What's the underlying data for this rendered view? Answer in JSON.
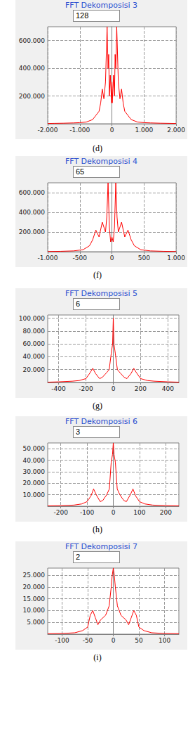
{
  "chart_data": [
    {
      "type": "line",
      "title": "FFT Dekomposisi 3",
      "subtitle": "128",
      "caption": "(d)",
      "color": "#ff0000",
      "grid": true,
      "x": [
        -2000,
        -1800,
        -1500,
        -1200,
        -1000,
        -800,
        -600,
        -500,
        -400,
        -350,
        -300,
        -250,
        -200,
        -150,
        -120,
        -100,
        -80,
        -50,
        -30,
        -10,
        0,
        10,
        30,
        50,
        80,
        100,
        120,
        150,
        200,
        250,
        300,
        350,
        400,
        500,
        600,
        800,
        1000,
        1200,
        1500,
        1800,
        2000
      ],
      "values": [
        2000,
        3000,
        4000,
        6000,
        8000,
        12000,
        30000,
        60000,
        90000,
        150000,
        250000,
        180000,
        300000,
        700000,
        400000,
        500000,
        200000,
        350000,
        250000,
        150000,
        300000,
        150000,
        250000,
        350000,
        200000,
        500000,
        400000,
        700000,
        300000,
        180000,
        250000,
        150000,
        90000,
        60000,
        30000,
        12000,
        8000,
        6000,
        4000,
        3000,
        2000
      ],
      "xlim": [
        -2000,
        2000
      ],
      "xticks": [
        {
          "value": -2000,
          "label": "-2.000"
        },
        {
          "value": -1000,
          "label": "-1.000"
        },
        0,
        {
          "value": 1000,
          "label": "1.000"
        },
        {
          "value": 2000,
          "label": "2.000"
        }
      ],
      "ylim": [
        0,
        700000
      ],
      "yticks": [
        {
          "value": 200000,
          "label": "200.000"
        },
        {
          "value": 400000,
          "label": "400.000"
        },
        {
          "value": 600000,
          "label": "600.000"
        }
      ]
    },
    {
      "type": "line",
      "title": "FFT Dekomposisi 4",
      "subtitle": "65",
      "caption": "(f)",
      "color": "#ff0000",
      "grid": true,
      "x": [
        -1000,
        -800,
        -600,
        -450,
        -350,
        -300,
        -250,
        -200,
        -150,
        -100,
        -80,
        -60,
        -40,
        -20,
        0,
        20,
        40,
        60,
        80,
        100,
        150,
        200,
        250,
        300,
        350,
        450,
        600,
        800,
        1000
      ],
      "values": [
        2000,
        4000,
        8000,
        20000,
        60000,
        120000,
        220000,
        150000,
        300000,
        200000,
        350000,
        700000,
        250000,
        100000,
        150000,
        100000,
        250000,
        700000,
        350000,
        200000,
        300000,
        150000,
        220000,
        120000,
        60000,
        20000,
        8000,
        4000,
        2000
      ],
      "xlim": [
        -1000,
        1000
      ],
      "xticks": [
        {
          "value": -1000,
          "label": "-1.000"
        },
        -500,
        0,
        500,
        {
          "value": 1000,
          "label": "1.000"
        }
      ],
      "ylim": [
        0,
        700000
      ],
      "yticks": [
        {
          "value": 200000,
          "label": "200.000"
        },
        {
          "value": 400000,
          "label": "400.000"
        },
        {
          "value": 600000,
          "label": "600.000"
        }
      ]
    },
    {
      "type": "line",
      "title": "FFT Dekomposisi 5",
      "subtitle": "6",
      "caption": "(g)",
      "color": "#ff0000",
      "grid": true,
      "x": [
        -480,
        -400,
        -300,
        -250,
        -200,
        -170,
        -150,
        -130,
        -100,
        -80,
        -50,
        -30,
        -15,
        -5,
        0,
        5,
        15,
        30,
        50,
        80,
        100,
        130,
        150,
        170,
        200,
        250,
        300,
        400,
        480
      ],
      "values": [
        500,
        1000,
        2000,
        3000,
        6000,
        15000,
        22000,
        14000,
        6000,
        8000,
        15000,
        20000,
        45000,
        60000,
        100000,
        60000,
        45000,
        20000,
        15000,
        8000,
        6000,
        14000,
        22000,
        15000,
        6000,
        3000,
        2000,
        1000,
        500
      ],
      "xlim": [
        -480,
        480
      ],
      "xticks": [
        -400,
        -200,
        0,
        200,
        400
      ],
      "ylim": [
        0,
        105000
      ],
      "yticks": [
        {
          "value": 20000,
          "label": "20.000"
        },
        {
          "value": 40000,
          "label": "40.000"
        },
        {
          "value": 60000,
          "label": "60.000"
        },
        {
          "value": 80000,
          "label": "80.000"
        },
        {
          "value": 100000,
          "label": "100.000"
        }
      ]
    },
    {
      "type": "line",
      "title": "FFT Dekomposisi 6",
      "subtitle": "3",
      "caption": "(h)",
      "color": "#ff0000",
      "grid": true,
      "x": [
        -250,
        -200,
        -150,
        -120,
        -100,
        -85,
        -75,
        -65,
        -50,
        -40,
        -25,
        -15,
        -8,
        -3,
        0,
        3,
        8,
        15,
        25,
        40,
        50,
        65,
        75,
        85,
        100,
        120,
        150,
        200,
        250
      ],
      "values": [
        300,
        500,
        1000,
        2000,
        4000,
        9000,
        15000,
        10000,
        4000,
        5000,
        10000,
        15000,
        38000,
        45000,
        55000,
        45000,
        38000,
        15000,
        10000,
        5000,
        4000,
        10000,
        15000,
        9000,
        4000,
        2000,
        1000,
        500,
        300
      ],
      "xlim": [
        -250,
        250
      ],
      "xticks": [
        -200,
        -100,
        0,
        100,
        200
      ],
      "ylim": [
        0,
        55000
      ],
      "yticks": [
        {
          "value": 10000,
          "label": "10.000"
        },
        {
          "value": 20000,
          "label": "20.000"
        },
        {
          "value": 30000,
          "label": "30.000"
        },
        {
          "value": 40000,
          "label": "40.000"
        },
        {
          "value": 50000,
          "label": "50.000"
        }
      ]
    },
    {
      "type": "line",
      "title": "FFT Dekomposisi 7",
      "subtitle": "2",
      "caption": "(i)",
      "color": "#ff0000",
      "grid": true,
      "x": [
        -128,
        -100,
        -75,
        -60,
        -50,
        -45,
        -40,
        -35,
        -30,
        -25,
        -15,
        -8,
        -4,
        -2,
        0,
        2,
        4,
        8,
        15,
        25,
        30,
        35,
        40,
        45,
        50,
        60,
        75,
        100,
        128
      ],
      "values": [
        200,
        300,
        600,
        1500,
        3000,
        8000,
        10000,
        7000,
        4000,
        6000,
        8000,
        12000,
        20000,
        25000,
        28000,
        25000,
        20000,
        12000,
        8000,
        6000,
        4000,
        7000,
        10000,
        8000,
        3000,
        1500,
        600,
        300,
        200
      ],
      "xlim": [
        -128,
        128
      ],
      "xticks": [
        -100,
        -50,
        0,
        50,
        100
      ],
      "ylim": [
        0,
        28000
      ],
      "yticks": [
        {
          "value": 5000,
          "label": "5.000"
        },
        {
          "value": 10000,
          "label": "10.000"
        },
        {
          "value": 15000,
          "label": "15.000"
        },
        {
          "value": 20000,
          "label": "20.000"
        },
        {
          "value": 25000,
          "label": "25.000"
        }
      ]
    }
  ]
}
